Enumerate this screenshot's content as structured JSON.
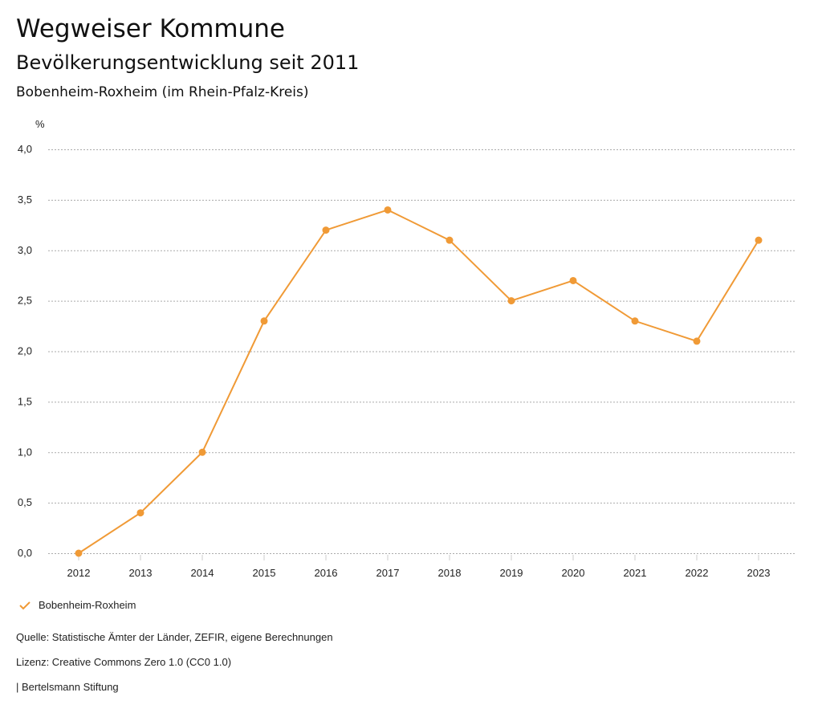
{
  "header": {
    "title": "Wegweiser Kommune",
    "subtitle": "Bevölkerungsentwicklung seit 2011",
    "region": "Bobenheim-Roxheim (im Rhein-Pfalz-Kreis)"
  },
  "chart_data": {
    "type": "line",
    "ylabel": "%",
    "ylim": [
      0,
      4
    ],
    "yticks": [
      "0,0",
      "0,5",
      "1,0",
      "1,5",
      "2,0",
      "2,5",
      "3,0",
      "3,5",
      "4,0"
    ],
    "ytick_values": [
      0,
      0.5,
      1,
      1.5,
      2,
      2.5,
      3,
      3.5,
      4
    ],
    "x": [
      "2012",
      "2013",
      "2014",
      "2015",
      "2016",
      "2017",
      "2018",
      "2019",
      "2020",
      "2021",
      "2022",
      "2023"
    ],
    "series": [
      {
        "name": "Bobenheim-Roxheim",
        "color": "#f09a36",
        "values": [
          0,
          0.4,
          1.0,
          2.3,
          3.2,
          3.4,
          3.1,
          2.5,
          2.7,
          2.3,
          2.1,
          3.1
        ]
      }
    ],
    "grid": true,
    "legend": "bottom-left"
  },
  "footer": {
    "source": "Quelle: Statistische Ämter der Länder, ZEFIR, eigene Berechnungen",
    "license": "Lizenz: Creative Commons Zero 1.0 (CC0 1.0)",
    "publisher": "| Bertelsmann Stiftung"
  }
}
